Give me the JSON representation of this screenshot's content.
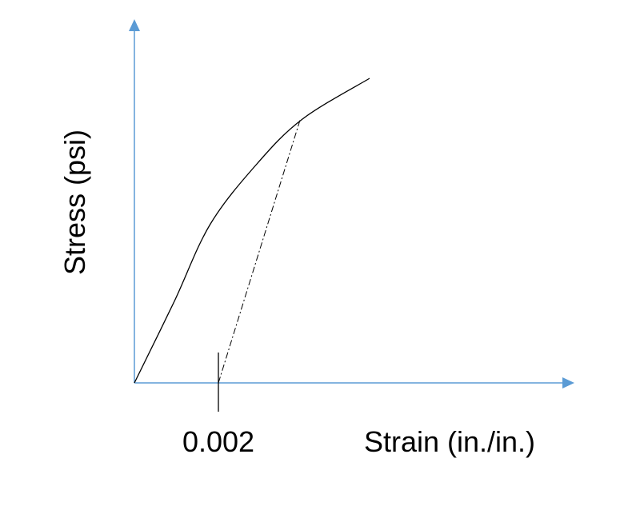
{
  "chart_data": {
    "type": "line",
    "xlabel": "Strain (in./in.)",
    "ylabel": "Stress (psi)",
    "x_ticks": [
      {
        "value": 0.002,
        "label": "0.002"
      }
    ],
    "grid": false,
    "legend": "none",
    "series": [
      {
        "role": "stress-strain-curve",
        "x": [
          0,
          0.00095,
          0.0018,
          0.0029,
          0.004,
          0.0056
        ],
        "y": [
          0,
          17,
          33,
          45.5,
          55,
          63.5
        ]
      },
      {
        "role": "offset-line",
        "x": [
          0.002,
          0.00395
        ],
        "y": [
          0,
          55
        ]
      }
    ],
    "colors": {
      "axes": "#5b9bd5",
      "curve": "#000000",
      "offset": "#000000"
    }
  }
}
